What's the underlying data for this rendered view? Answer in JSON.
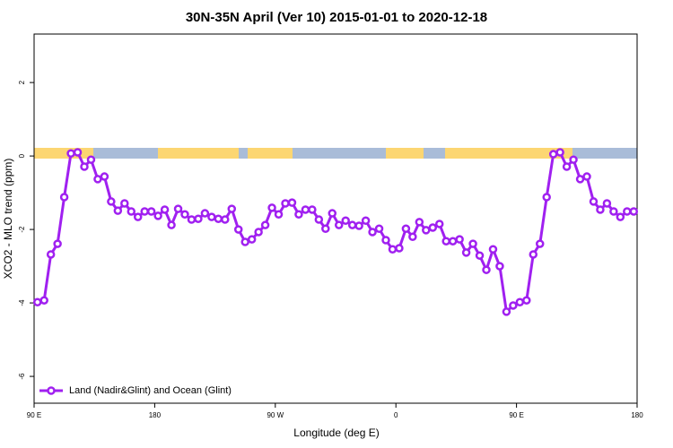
{
  "chart_data": {
    "type": "line",
    "title": "30N-35N April (Ver 10)   2015-01-01 to 2020-12-18",
    "x_label": "Longitude (deg E)",
    "y_label": "XCO2 - MLO trend (ppm)",
    "xlim": [
      90,
      540
    ],
    "ylim": [
      -6.73,
      3.32
    ],
    "xticks": [
      {
        "value": 90,
        "label": "90 E"
      },
      {
        "value": 180,
        "label": "180"
      },
      {
        "value": 270,
        "label": "90 W"
      },
      {
        "value": 360,
        "label": "0"
      },
      {
        "value": 450,
        "label": "90 E"
      },
      {
        "value": 540,
        "label": "180"
      }
    ],
    "yticks": [
      -6,
      -4,
      -2,
      0,
      2
    ],
    "legend": "bottomleft",
    "x": [
      92.5,
      97.5,
      102.5,
      107.5,
      112.5,
      117.5,
      122.5,
      127.5,
      132.5,
      137.5,
      142.5,
      147.5,
      152.5,
      157.5,
      162.5,
      167.5,
      172.5,
      177.5,
      182.5,
      187.5,
      192.5,
      197.5,
      202.5,
      207.5,
      212.5,
      217.5,
      222.5,
      227.5,
      232.5,
      237.5,
      242.5,
      247.5,
      252.5,
      257.5,
      262.5,
      267.5,
      272.5,
      277.5,
      282.5,
      287.5,
      292.5,
      297.5,
      302.5,
      307.5,
      312.5,
      317.5,
      322.5,
      327.5,
      332.5,
      337.5,
      342.5,
      347.5,
      352.5,
      357.5,
      362.5,
      367.5,
      372.5,
      377.5,
      382.5,
      387.5,
      392.5,
      397.5,
      402.5,
      407.5,
      412.5,
      417.5,
      422.5,
      427.5,
      432.5,
      437.5,
      442.5,
      447.5,
      452.5,
      457.5,
      462.5,
      467.5,
      472.5,
      477.5,
      482.5,
      487.5,
      492.5,
      497.5,
      502.5,
      507.5,
      512.5,
      517.5,
      522.5,
      527.5,
      532.5,
      537.5
    ],
    "series": [
      {
        "name": "Land (Nadir&Glint) and Ocean (Glint)",
        "color": "#a020f0",
        "values": [
          -3.98,
          -3.93,
          -2.68,
          -2.39,
          -1.12,
          0.07,
          0.1,
          -0.29,
          -0.1,
          -0.63,
          -0.56,
          -1.24,
          -1.49,
          -1.29,
          -1.51,
          -1.66,
          -1.51,
          -1.51,
          -1.63,
          -1.46,
          -1.88,
          -1.44,
          -1.59,
          -1.73,
          -1.71,
          -1.56,
          -1.66,
          -1.71,
          -1.73,
          -1.44,
          -2.0,
          -2.34,
          -2.27,
          -2.07,
          -1.88,
          -1.41,
          -1.59,
          -1.29,
          -1.27,
          -1.59,
          -1.46,
          -1.46,
          -1.73,
          -1.98,
          -1.56,
          -1.88,
          -1.76,
          -1.88,
          -1.9,
          -1.76,
          -2.07,
          -1.98,
          -2.29,
          -2.54,
          -2.51,
          -1.98,
          -2.2,
          -1.8,
          -2.02,
          -1.95,
          -1.85,
          -2.32,
          -2.32,
          -2.27,
          -2.63,
          -2.39,
          -2.71,
          -3.1,
          -2.54,
          -3.0,
          -4.24,
          -4.07,
          -3.98,
          -3.93,
          -2.68,
          -2.39,
          -1.12,
          0.05,
          0.1,
          -0.29,
          -0.1,
          -0.63,
          -0.56,
          -1.24,
          -1.46,
          -1.29,
          -1.51,
          -1.66,
          -1.51,
          -1.51
        ]
      }
    ]
  }
}
